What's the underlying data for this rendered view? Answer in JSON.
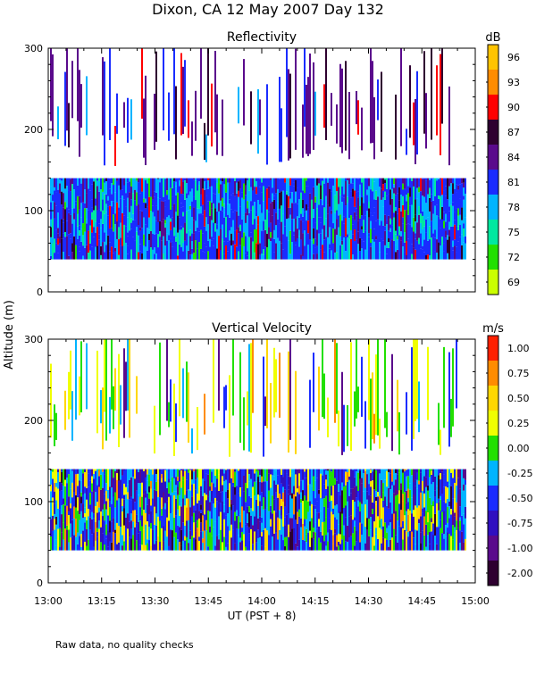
{
  "figure": {
    "title": "Dixon, CA 12 May 2007  Day 132",
    "ylabel": "Altitude (m)",
    "xlabel": "UT  (PST + 8)",
    "footnote": "Raw data, no quality checks"
  },
  "chart_data": [
    {
      "type": "heatmap",
      "title": "Reflectivity",
      "xlabel": "UT  (PST + 8)",
      "ylabel": "Altitude (m)",
      "x_tick_labels": [
        "13:00",
        "13:15",
        "13:30",
        "13:45",
        "14:00",
        "14:15",
        "14:30",
        "14:45",
        "15:00"
      ],
      "xlim_hours": [
        13.0,
        15.0
      ],
      "ylim": [
        0,
        300
      ],
      "y_ticks": [
        0,
        100,
        200,
        300
      ],
      "colorbar": {
        "unit": "dB",
        "tick_labels": [
          "96",
          "93",
          "90",
          "87",
          "84",
          "81",
          "78",
          "75",
          "72",
          "69"
        ],
        "colors_top_to_bottom": [
          "#ffc400",
          "#ff8c00",
          "#ff0000",
          "#2e0030",
          "#5a0a8c",
          "#1a2cff",
          "#00b4ff",
          "#00e8a0",
          "#22e000",
          "#caff00"
        ]
      },
      "data_description": {
        "low_layer_m": [
          40,
          140
        ],
        "upper_layer_m": [
          155,
          300
        ],
        "dominant_low_layer_dB": [
          78,
          84
        ],
        "upper_layer_dB": [
          84,
          90
        ]
      }
    },
    {
      "type": "heatmap",
      "title": "Vertical Velocity",
      "xlabel": "UT  (PST + 8)",
      "ylabel": "Altitude (m)",
      "x_tick_labels": [
        "13:00",
        "13:15",
        "13:30",
        "13:45",
        "14:00",
        "14:15",
        "14:30",
        "14:45",
        "15:00"
      ],
      "xlim_hours": [
        13.0,
        15.0
      ],
      "ylim": [
        0,
        300
      ],
      "y_ticks": [
        0,
        100,
        200,
        300
      ],
      "colorbar": {
        "unit": "m/s",
        "tick_labels": [
          "1.00",
          "0.75",
          "0.50",
          "0.25",
          "0.00",
          "-0.25",
          "-0.50",
          "-0.75",
          "-1.00",
          "-2.00"
        ],
        "colors_top_to_bottom": [
          "#ff2000",
          "#ff8c00",
          "#ffd700",
          "#f0ff00",
          "#22e000",
          "#00b4ff",
          "#1a2cff",
          "#3010c0",
          "#5a0a8c",
          "#2e0030"
        ]
      },
      "data_description": {
        "low_layer_m": [
          40,
          140
        ],
        "upper_layer_m": [
          155,
          300
        ],
        "dominant_velocity_m_s": [
          -0.75,
          0.5
        ]
      }
    }
  ]
}
